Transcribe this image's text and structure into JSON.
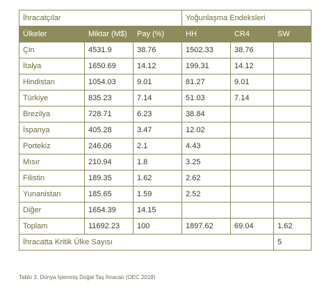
{
  "table": {
    "group_exporters": "İhracatçılar",
    "group_concentration": "Yoğunlaşma Endeksleri",
    "columns": {
      "country": "Ülkeler",
      "amount": "Miktar (M$)",
      "share": "Pay (%)",
      "hh": "HH",
      "cr4": "CR4",
      "sw": "SW"
    },
    "rows": [
      {
        "country": "Çin",
        "amount": "4531.9",
        "share": "38.76",
        "hh": "1502.33",
        "cr4": "38.76",
        "sw": ""
      },
      {
        "country": "İtalya",
        "amount": "1650.69",
        "share": "14.12",
        "hh": "199.31",
        "cr4": "14.12",
        "sw": ""
      },
      {
        "country": "Hindistan",
        "amount": "1054.03",
        "share": "9.01",
        "hh": "81.27",
        "cr4": "9.01",
        "sw": ""
      },
      {
        "country": "Türkiye",
        "amount": "835.23",
        "share": "7.14",
        "hh": "51.03",
        "cr4": "7.14",
        "sw": ""
      },
      {
        "country": "Brezilya",
        "amount": "728.71",
        "share": "6.23",
        "hh": "38.84",
        "cr4": "",
        "sw": ""
      },
      {
        "country": "İspanya",
        "amount": "405.28",
        "share": "3.47",
        "hh": "12.02",
        "cr4": "",
        "sw": ""
      },
      {
        "country": "Portekiz",
        "amount": "246.06",
        "share": "2.1",
        "hh": "4.43",
        "cr4": "",
        "sw": ""
      },
      {
        "country": "Mısır",
        "amount": "210.94",
        "share": "1.8",
        "hh": "3.25",
        "cr4": "",
        "sw": ""
      },
      {
        "country": "Filistin",
        "amount": "189.35",
        "share": "1.62",
        "hh": "2.62",
        "cr4": "",
        "sw": ""
      },
      {
        "country": "Yunanistan",
        "amount": "185.65",
        "share": "1.59",
        "hh": "2.52",
        "cr4": "",
        "sw": ""
      },
      {
        "country": "Diğer",
        "amount": "1654.39",
        "share": "14.15",
        "hh": "",
        "cr4": "",
        "sw": ""
      }
    ],
    "total": {
      "label": "Toplam",
      "amount": "11692.23",
      "share": "100",
      "hh": "1897.62",
      "cr4": "69.04",
      "sw": "1.62"
    },
    "critical": {
      "label": "İhracatta Kritik Ülke Sayısı",
      "value": "5"
    }
  },
  "caption": "Tablo 3. Dünya İşlenmiş Doğal Taş İhracatı (OEC 2018)"
}
